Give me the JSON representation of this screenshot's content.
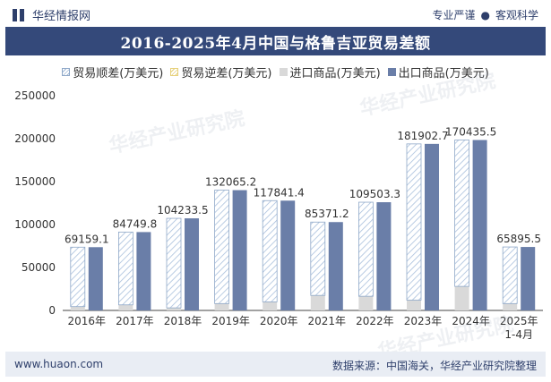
{
  "header": {
    "brand": "华经情报网",
    "tagline_left": "专业严谨",
    "tagline_sep": "●",
    "tagline_right": "客观科学"
  },
  "footer": {
    "site": "www.huaon.com",
    "source": "数据来源：中国海关，华经产业研究院整理"
  },
  "watermark": "华经产业研究院",
  "colors": {
    "title_bg": "#34497a",
    "export": "#6a7ea8",
    "import": "#d9d9d9",
    "surplus_stroke": "#8fa8c8",
    "deficit": "#e6d07a"
  },
  "chart_data": {
    "type": "bar",
    "title": "2016-2025年4月中国与格鲁吉亚贸易差额",
    "categories": [
      "2016年",
      "2017年",
      "2018年",
      "2019年",
      "2020年",
      "2021年",
      "2022年",
      "2023年",
      "2024年",
      "2025年\n1-4月"
    ],
    "series": [
      {
        "name": "贸易顺差(万美元)",
        "values": [
          69159.1,
          84749.8,
          104233.5,
          132065.2,
          117841.4,
          85371.2,
          109503.3,
          181902.7,
          170435.5,
          65895.5
        ]
      },
      {
        "name": "贸易逆差(万美元)",
        "values": [
          0,
          0,
          0,
          0,
          0,
          0,
          0,
          0,
          0,
          0
        ]
      },
      {
        "name": "进口商品(万美元)",
        "values": [
          4500,
          6500,
          3000,
          8000,
          10000,
          17500,
          16500,
          12000,
          28000,
          8000
        ]
      },
      {
        "name": "出口商品(万美元)",
        "values": [
          73659.1,
          91249.8,
          107233.5,
          140065.2,
          127841.4,
          102871.2,
          126003.3,
          193902.7,
          198435.5,
          73895.5
        ]
      }
    ],
    "data_labels": [
      "69159.1",
      "84749.8",
      "104233.5",
      "132065.2",
      "117841.4",
      "85371.2",
      "109503.3",
      "181902.7",
      "170435.5",
      "65895.5"
    ],
    "ylim": [
      0,
      250000
    ],
    "yticks": [
      0,
      50000,
      100000,
      150000,
      200000,
      250000
    ],
    "grid": false,
    "legend": "top"
  }
}
